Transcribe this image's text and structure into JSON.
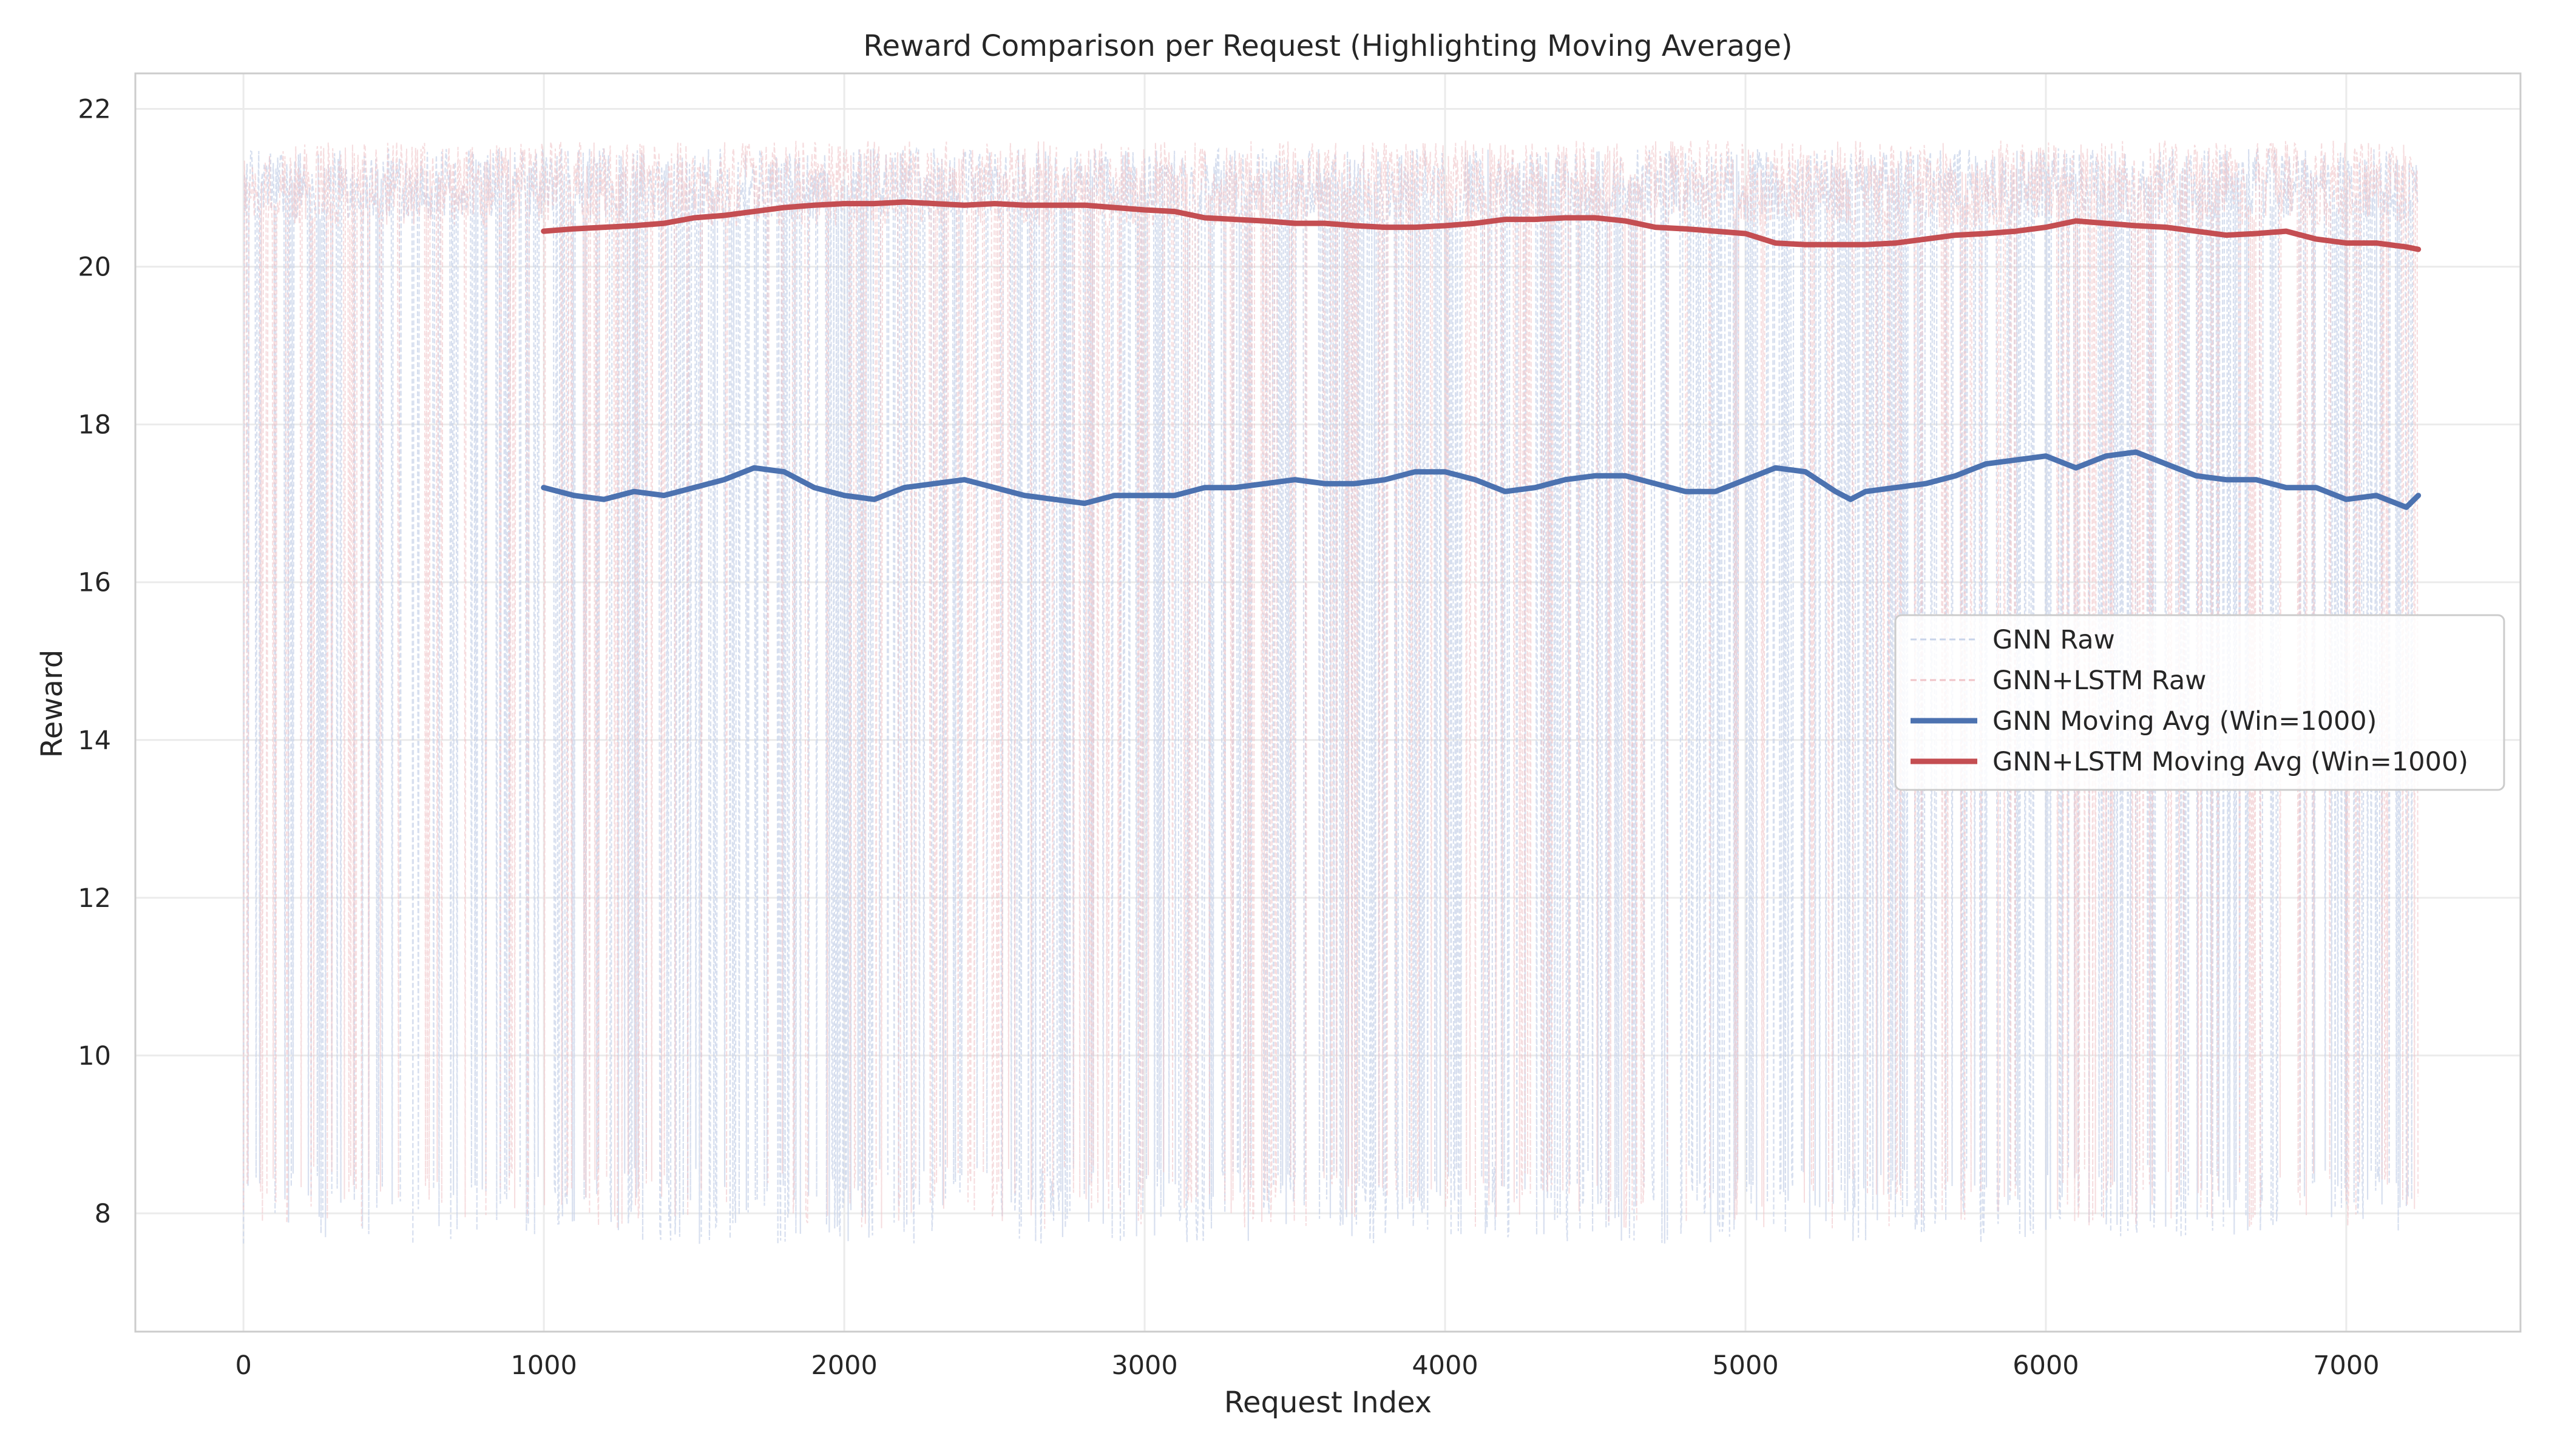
{
  "chart_data": {
    "type": "line",
    "title": "Reward Comparison per Request (Highlighting Moving Average)",
    "xlabel": "Request Index",
    "ylabel": "Reward",
    "xlim": [
      -360,
      7580
    ],
    "ylim": [
      6.5,
      22.45
    ],
    "xticks": [
      0,
      1000,
      2000,
      3000,
      4000,
      5000,
      6000,
      7000
    ],
    "yticks": [
      8,
      10,
      12,
      14,
      16,
      18,
      20,
      22
    ],
    "grid": true,
    "legend_position": "center-right",
    "legend": [
      {
        "label": "GNN Raw",
        "color": "#c9d4ea",
        "style": "dashed-thin"
      },
      {
        "label": "GNN+LSTM Raw",
        "color": "#f0c4c8",
        "style": "dashed-thin"
      },
      {
        "label": "GNN Moving Avg (Win=1000)",
        "color": "#4c72b0",
        "style": "solid-thick"
      },
      {
        "label": "GNN+LSTM Moving Avg (Win=1000)",
        "color": "#c44e52",
        "style": "solid-thick"
      }
    ],
    "series": [
      {
        "name": "GNN Raw",
        "kind": "raw",
        "color": "#c9d4ea",
        "x_range": [
          0,
          7240
        ],
        "high_band": [
          20.6,
          21.5
        ],
        "low_band": [
          7.6,
          8.6
        ],
        "note": "dense noisy raw rewards oscillating between ~8 and ~21.5"
      },
      {
        "name": "GNN+LSTM Raw",
        "kind": "raw",
        "color": "#f0c4c8",
        "x_range": [
          0,
          7240
        ],
        "high_band": [
          20.5,
          21.6
        ],
        "low_band": [
          7.8,
          8.6
        ]
      },
      {
        "name": "GNN Moving Avg (Win=1000)",
        "kind": "avg",
        "color": "#4c72b0",
        "x": [
          999,
          1100,
          1200,
          1300,
          1400,
          1500,
          1600,
          1700,
          1800,
          1900,
          2000,
          2100,
          2200,
          2300,
          2400,
          2500,
          2600,
          2700,
          2800,
          2900,
          3000,
          3100,
          3200,
          3300,
          3400,
          3500,
          3600,
          3700,
          3800,
          3900,
          4000,
          4100,
          4200,
          4300,
          4400,
          4500,
          4600,
          4700,
          4800,
          4900,
          5000,
          5100,
          5200,
          5300,
          5350,
          5400,
          5500,
          5600,
          5700,
          5800,
          5900,
          6000,
          6100,
          6200,
          6300,
          6400,
          6500,
          6600,
          6700,
          6800,
          6900,
          7000,
          7100,
          7200,
          7240
        ],
        "y": [
          17.2,
          17.1,
          17.05,
          17.15,
          17.1,
          17.2,
          17.3,
          17.45,
          17.4,
          17.2,
          17.1,
          17.05,
          17.2,
          17.25,
          17.3,
          17.2,
          17.1,
          17.05,
          17.0,
          17.1,
          17.1,
          17.1,
          17.2,
          17.2,
          17.25,
          17.3,
          17.25,
          17.25,
          17.3,
          17.4,
          17.4,
          17.3,
          17.15,
          17.2,
          17.3,
          17.35,
          17.35,
          17.25,
          17.15,
          17.15,
          17.3,
          17.45,
          17.4,
          17.15,
          17.05,
          17.15,
          17.2,
          17.25,
          17.35,
          17.5,
          17.55,
          17.6,
          17.45,
          17.6,
          17.65,
          17.5,
          17.35,
          17.3,
          17.3,
          17.2,
          17.2,
          17.05,
          17.1,
          16.95,
          17.1
        ]
      },
      {
        "name": "GNN+LSTM Moving Avg (Win=1000)",
        "kind": "avg",
        "color": "#c44e52",
        "x": [
          999,
          1100,
          1200,
          1300,
          1400,
          1500,
          1600,
          1700,
          1800,
          1900,
          2000,
          2100,
          2200,
          2300,
          2400,
          2500,
          2600,
          2700,
          2800,
          2900,
          3000,
          3100,
          3200,
          3300,
          3400,
          3500,
          3600,
          3700,
          3800,
          3900,
          4000,
          4100,
          4200,
          4300,
          4400,
          4500,
          4600,
          4700,
          4800,
          4900,
          5000,
          5100,
          5200,
          5300,
          5400,
          5500,
          5600,
          5700,
          5800,
          5900,
          6000,
          6100,
          6200,
          6300,
          6400,
          6500,
          6600,
          6700,
          6800,
          6900,
          7000,
          7100,
          7200,
          7240
        ],
        "y": [
          20.45,
          20.48,
          20.5,
          20.52,
          20.55,
          20.62,
          20.65,
          20.7,
          20.75,
          20.78,
          20.8,
          20.8,
          20.82,
          20.8,
          20.78,
          20.8,
          20.78,
          20.78,
          20.78,
          20.75,
          20.72,
          20.7,
          20.62,
          20.6,
          20.58,
          20.55,
          20.55,
          20.52,
          20.5,
          20.5,
          20.52,
          20.55,
          20.6,
          20.6,
          20.62,
          20.62,
          20.58,
          20.5,
          20.48,
          20.45,
          20.42,
          20.3,
          20.28,
          20.28,
          20.28,
          20.3,
          20.35,
          20.4,
          20.42,
          20.45,
          20.5,
          20.58,
          20.55,
          20.52,
          20.5,
          20.45,
          20.4,
          20.42,
          20.45,
          20.35,
          20.3,
          20.3,
          20.25,
          20.22
        ]
      }
    ]
  }
}
